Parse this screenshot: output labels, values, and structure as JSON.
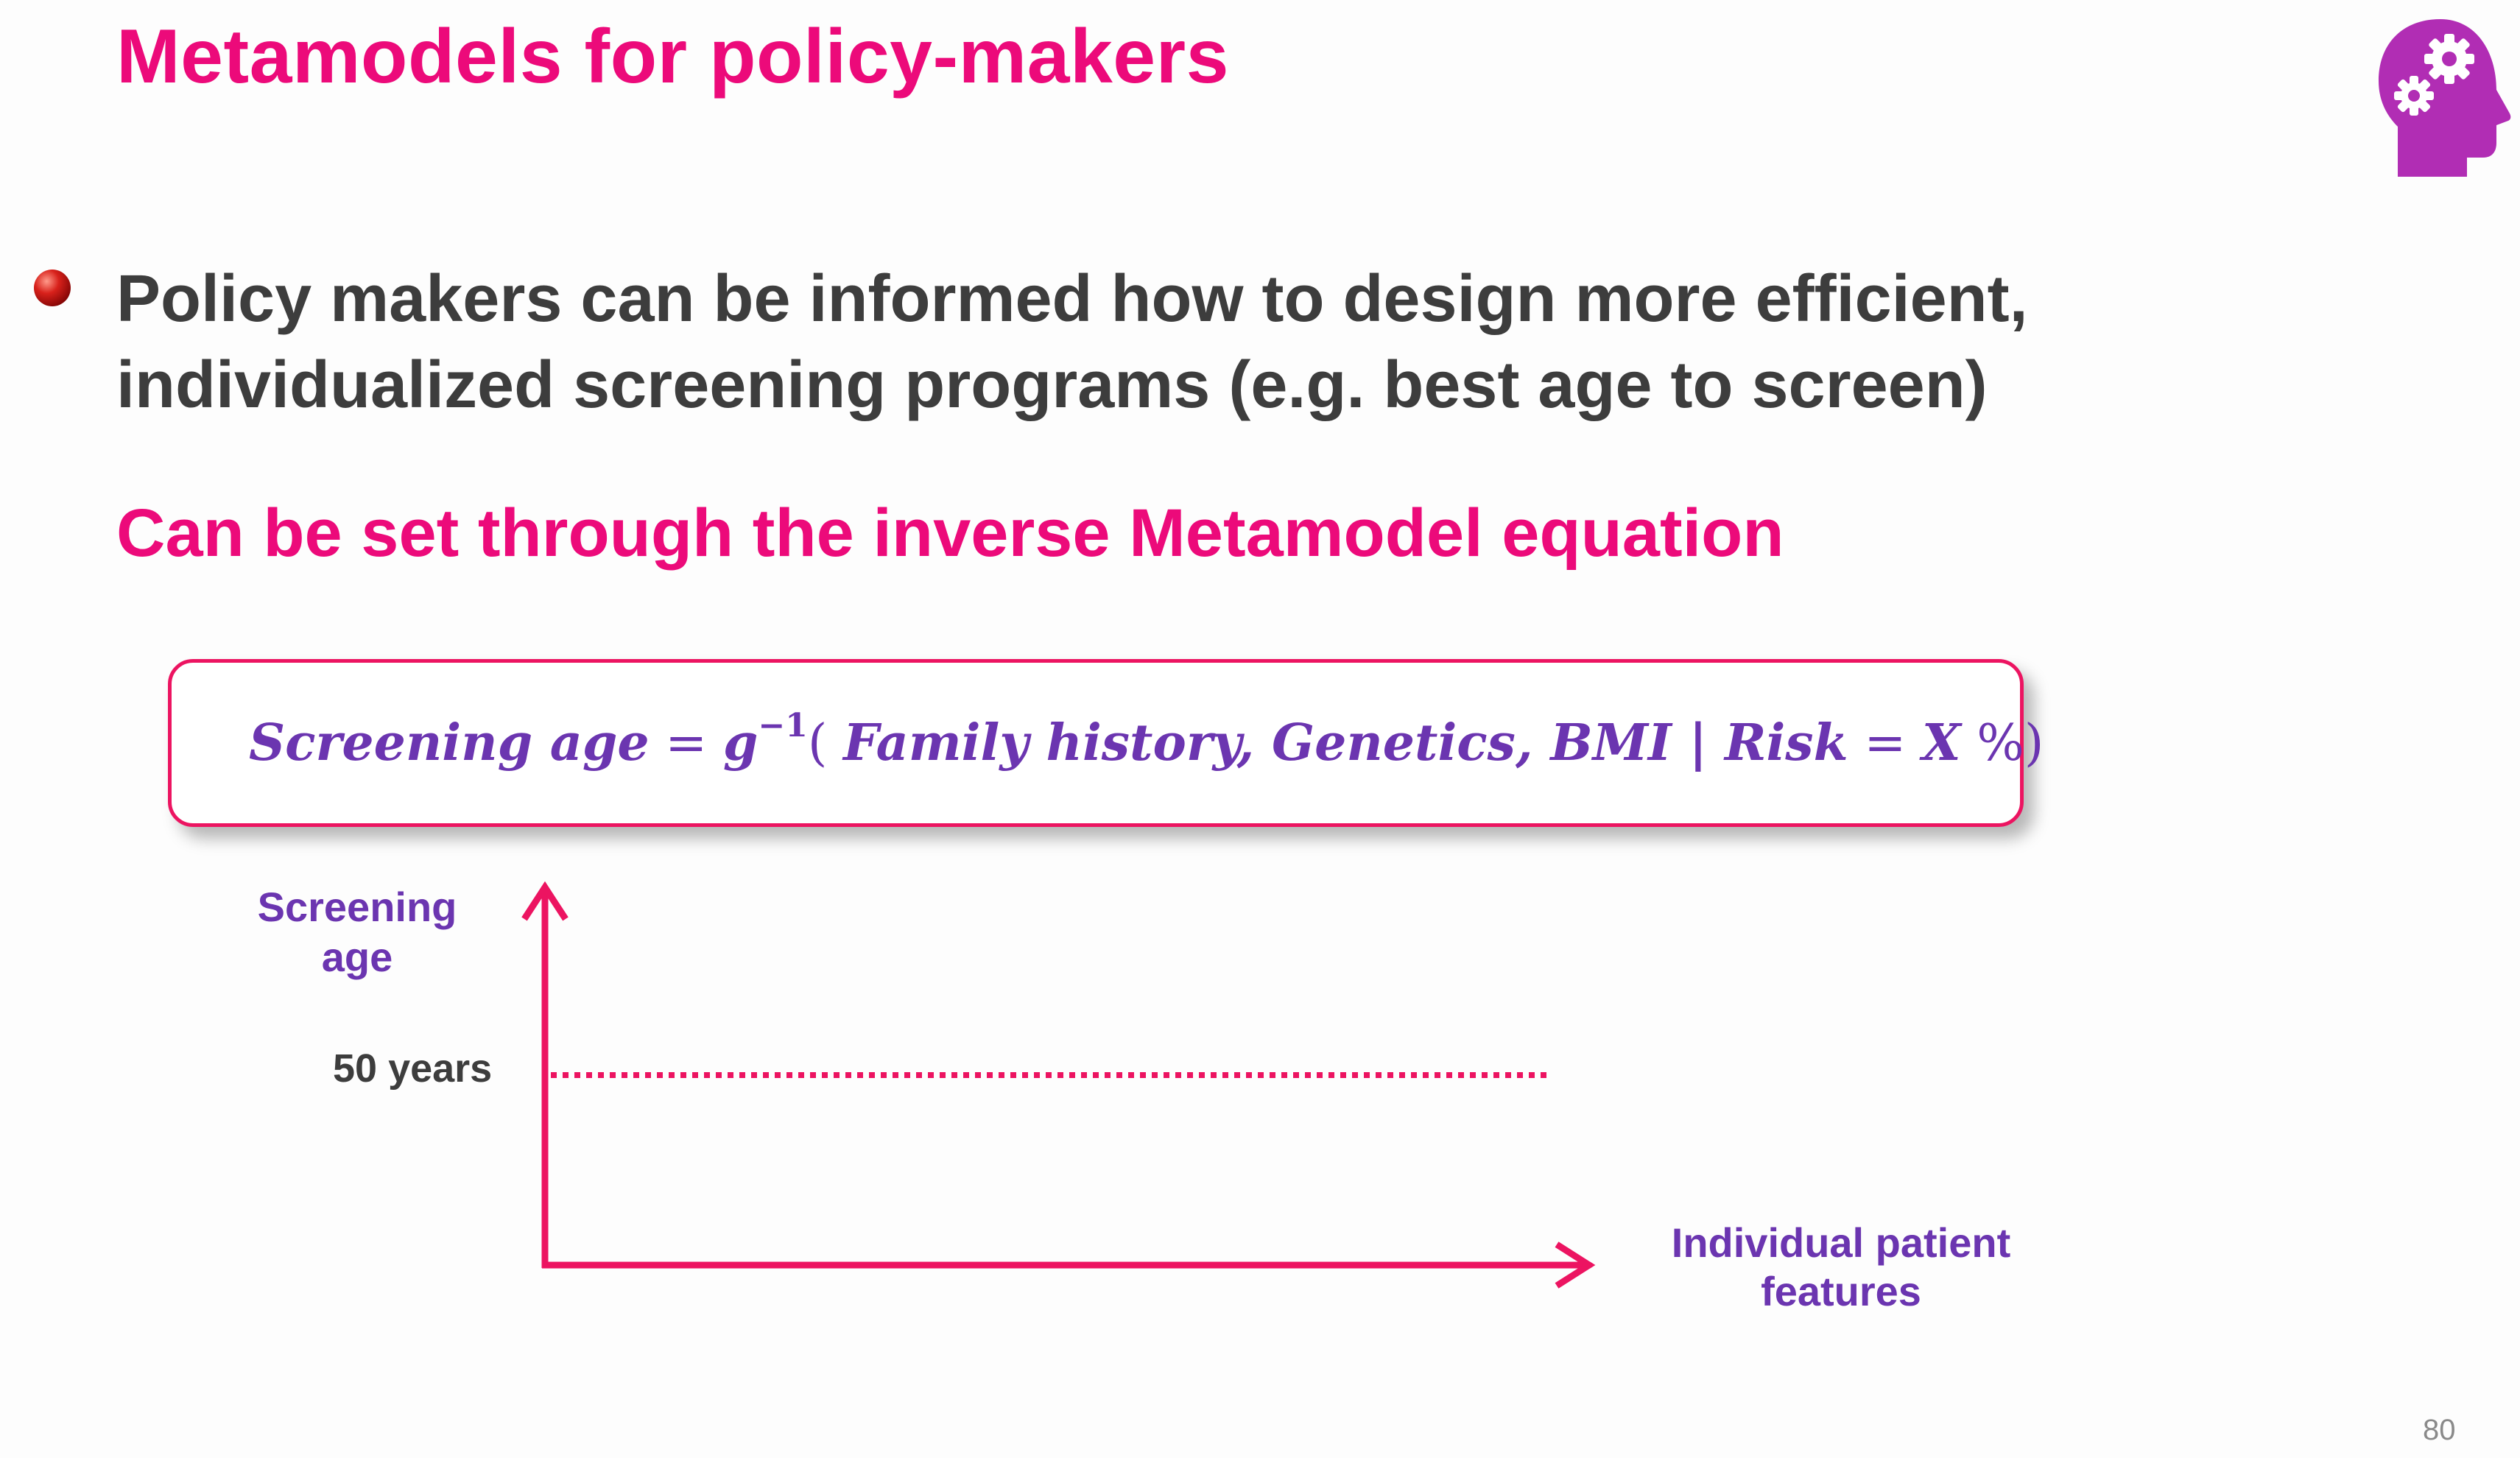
{
  "title": "Metamodels for policy-makers",
  "icon": "head-with-gears-icon",
  "bullet": {
    "line1": "Policy makers can be informed how to design more efficient,",
    "line2": "individualized screening programs (e.g. best age to screen)"
  },
  "subheading": "Can be set through the inverse Metamodel equation",
  "equation": {
    "lhs": "Screening age",
    "eq": " = ",
    "func": "g",
    "sup": "−1",
    "open": "( ",
    "args": "Family history, Genetics, BMI | Risk",
    "eq2": " = ",
    "x": "X",
    "pct": " %)"
  },
  "diagram": {
    "y_label_line1": "Screening",
    "y_label_line2": "age",
    "reference_label": "50 years",
    "x_label_line1": "Individual patient",
    "x_label_line2": "features"
  },
  "page_number": "80",
  "colors": {
    "title": "#ec0a7a",
    "axis": "#ec1461",
    "labels": "#6b35b0",
    "body_text": "#3d3d3d"
  }
}
